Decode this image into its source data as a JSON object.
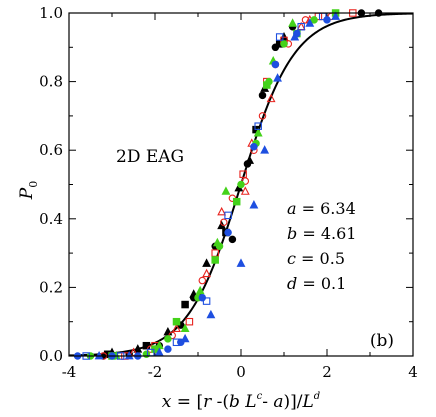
{
  "chart_data": {
    "type": "scatter",
    "title": "",
    "xlabel_parts": [
      "x",
      " = [",
      "r",
      " -(",
      "b",
      " ",
      "L",
      "c",
      "- ",
      "a",
      ")]/",
      "L",
      "d"
    ],
    "ylabel_parts": [
      "P",
      "0"
    ],
    "xlim": [
      -4,
      4
    ],
    "ylim": [
      0,
      1.0
    ],
    "x_ticks": [
      -4,
      -2,
      0,
      2,
      4
    ],
    "x_tick_labels": [
      "-4",
      "-2",
      "0",
      "2",
      "4"
    ],
    "y_ticks": [
      0,
      0.2,
      0.4,
      0.6,
      0.8,
      1.0
    ],
    "y_tick_labels": [
      "0.0",
      "0.2",
      "0.4",
      "0.6",
      "0.8",
      "1.0"
    ],
    "grid": false,
    "legend": "none",
    "region_label": "2D EAG",
    "panel_label": "(b)",
    "params": [
      {
        "symbol": "a",
        "eq": " = ",
        "value": "6.34"
      },
      {
        "symbol": "b",
        "eq": " = ",
        "value": "4.61"
      },
      {
        "symbol": "c",
        "eq": " = ",
        "value": "0.5"
      },
      {
        "symbol": "d",
        "eq": " = ",
        "value": "0.1"
      }
    ],
    "curve": {
      "type": "fit",
      "color": "#000000",
      "x_mid": 0.0,
      "width": 0.62
    },
    "series": [
      {
        "marker": "circle-filled",
        "color": "#000000",
        "points": [
          [
            -3.2,
            0.0
          ],
          [
            -2.6,
            0.005
          ],
          [
            -1.9,
            0.03
          ],
          [
            -1.4,
            0.09
          ],
          [
            -1.1,
            0.17
          ],
          [
            -0.6,
            0.32
          ],
          [
            -0.2,
            0.34
          ],
          [
            0.15,
            0.56
          ],
          [
            0.5,
            0.76
          ],
          [
            0.8,
            0.9
          ],
          [
            1.2,
            0.96
          ],
          [
            2.8,
            1.0
          ],
          [
            3.2,
            1.0
          ]
        ]
      },
      {
        "marker": "triangle-filled",
        "color": "#000000",
        "points": [
          [
            -3.0,
            0.01
          ],
          [
            -2.4,
            0.02
          ],
          [
            -1.7,
            0.07
          ],
          [
            -1.1,
            0.18
          ],
          [
            -0.8,
            0.27
          ],
          [
            -0.45,
            0.38
          ],
          [
            -0.05,
            0.49
          ],
          [
            0.2,
            0.57
          ],
          [
            0.55,
            0.78
          ],
          [
            1.0,
            0.93
          ]
        ]
      },
      {
        "marker": "square-filled",
        "color": "#000000",
        "points": [
          [
            -3.1,
            0.005
          ],
          [
            -2.2,
            0.03
          ],
          [
            -1.3,
            0.15
          ],
          [
            -0.35,
            0.36
          ],
          [
            0.35,
            0.66
          ],
          [
            0.9,
            0.91
          ]
        ]
      },
      {
        "marker": "circle-open",
        "color": "#e8231e",
        "points": [
          [
            -3.2,
            0.0
          ],
          [
            -2.1,
            0.02
          ],
          [
            -1.6,
            0.06
          ],
          [
            -0.9,
            0.22
          ],
          [
            -0.4,
            0.39
          ],
          [
            -0.2,
            0.46
          ],
          [
            0.1,
            0.51
          ],
          [
            0.3,
            0.6
          ],
          [
            0.5,
            0.7
          ],
          [
            0.8,
            0.85
          ],
          [
            1.1,
            0.91
          ],
          [
            1.5,
            0.98
          ],
          [
            2.1,
            0.99
          ]
        ]
      },
      {
        "marker": "triangle-open",
        "color": "#e8231e",
        "points": [
          [
            -2.5,
            0.01
          ],
          [
            -1.5,
            0.08
          ],
          [
            -0.8,
            0.24
          ],
          [
            -0.45,
            0.42
          ],
          [
            0.1,
            0.48
          ],
          [
            0.25,
            0.62
          ],
          [
            0.7,
            0.75
          ],
          [
            1.4,
            0.96
          ],
          [
            1.6,
            0.98
          ]
        ]
      },
      {
        "marker": "square-open",
        "color": "#e8231e",
        "points": [
          [
            -2.7,
            0.0
          ],
          [
            -2.0,
            0.03
          ],
          [
            -1.2,
            0.1
          ],
          [
            -0.6,
            0.3
          ],
          [
            0.05,
            0.53
          ],
          [
            0.6,
            0.8
          ],
          [
            1.0,
            0.92
          ],
          [
            1.8,
            0.99
          ],
          [
            2.6,
            1.0
          ]
        ]
      },
      {
        "marker": "circle-filled",
        "color": "#44d21a",
        "points": [
          [
            -3.5,
            0.0
          ],
          [
            -2.2,
            0.005
          ],
          [
            -1.7,
            0.05
          ],
          [
            -1.0,
            0.17
          ],
          [
            -0.5,
            0.32
          ],
          [
            0.0,
            0.5
          ],
          [
            0.35,
            0.62
          ],
          [
            0.65,
            0.8
          ],
          [
            1.0,
            0.91
          ],
          [
            1.7,
            0.98
          ]
        ]
      },
      {
        "marker": "triangle-filled",
        "color": "#44d21a",
        "points": [
          [
            -2.9,
            0.0
          ],
          [
            -1.9,
            0.03
          ],
          [
            -1.3,
            0.08
          ],
          [
            -0.95,
            0.19
          ],
          [
            -0.55,
            0.33
          ],
          [
            -0.35,
            0.48
          ],
          [
            0.4,
            0.65
          ],
          [
            0.75,
            0.86
          ],
          [
            1.2,
            0.97
          ]
        ]
      },
      {
        "marker": "square-filled",
        "color": "#44d21a",
        "points": [
          [
            -3.0,
            0.0
          ],
          [
            -2.0,
            0.02
          ],
          [
            -1.5,
            0.1
          ],
          [
            -0.6,
            0.28
          ],
          [
            -0.1,
            0.45
          ],
          [
            0.6,
            0.79
          ],
          [
            1.3,
            0.94
          ],
          [
            2.2,
            1.0
          ]
        ]
      },
      {
        "marker": "circle-filled",
        "color": "#1e4fe0",
        "points": [
          [
            -3.8,
            0.0
          ],
          [
            -3.0,
            0.0
          ],
          [
            -2.4,
            0.0
          ],
          [
            -1.7,
            0.02
          ],
          [
            -1.4,
            0.04
          ],
          [
            -0.9,
            0.17
          ],
          [
            -0.3,
            0.36
          ],
          [
            0.3,
            0.61
          ],
          [
            0.8,
            0.85
          ],
          [
            1.3,
            0.94
          ],
          [
            2.0,
            0.98
          ]
        ]
      },
      {
        "marker": "triangle-filled",
        "color": "#1e4fe0",
        "points": [
          [
            -3.3,
            0.0
          ],
          [
            -2.6,
            0.0
          ],
          [
            -1.9,
            0.01
          ],
          [
            -1.3,
            0.05
          ],
          [
            -0.7,
            0.12
          ],
          [
            0.0,
            0.27
          ],
          [
            0.3,
            0.44
          ],
          [
            0.55,
            0.6
          ],
          [
            0.85,
            0.81
          ],
          [
            1.25,
            0.93
          ],
          [
            1.6,
            0.97
          ],
          [
            2.2,
            0.99
          ]
        ]
      },
      {
        "marker": "square-open",
        "color": "#1e4fe0",
        "points": [
          [
            -3.6,
            0.0
          ],
          [
            -2.8,
            0.0
          ],
          [
            -2.1,
            0.01
          ],
          [
            -1.5,
            0.04
          ],
          [
            -0.8,
            0.16
          ],
          [
            -0.3,
            0.41
          ],
          [
            0.4,
            0.67
          ],
          [
            0.9,
            0.93
          ],
          [
            1.4,
            0.96
          ],
          [
            1.9,
            0.99
          ]
        ]
      }
    ]
  }
}
